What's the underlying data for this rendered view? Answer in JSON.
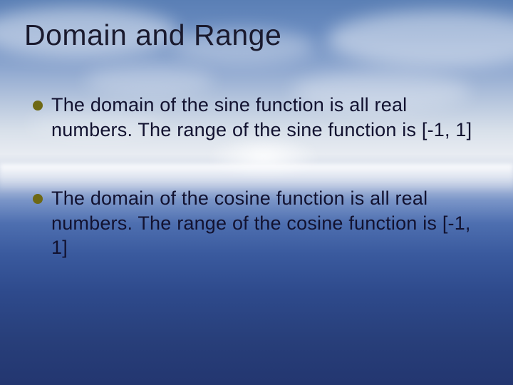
{
  "slide": {
    "title": "Domain and Range",
    "bullets": [
      {
        "text": "The domain of the sine function is all real numbers. The range of the sine function is [-1, 1]"
      },
      {
        "text": "The domain of the cosine function is all real numbers. The range of the cosine function is [-1, 1]"
      }
    ],
    "style": {
      "bullet_color": "#6e6814",
      "title_fontsize": 41,
      "body_fontsize": 27,
      "title_color": "#1a1a2e",
      "body_color": "#121230"
    }
  }
}
